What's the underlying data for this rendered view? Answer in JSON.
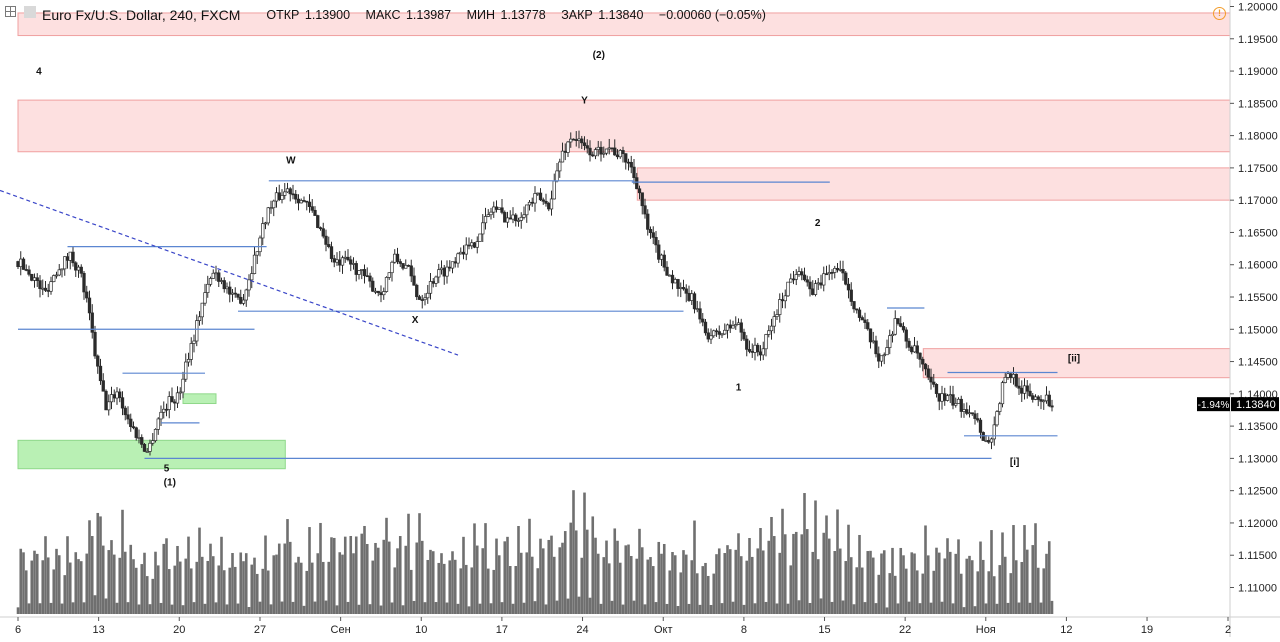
{
  "header": {
    "symbol": "Euro Fx/U.S. Dollar, 240, FXCM",
    "open_label": "ОТКР",
    "open": "1.13900",
    "high_label": "МАКС",
    "high": "1.13987",
    "low_label": "МИН",
    "low": "1.13778",
    "close_label": "ЗАКР",
    "close": "1.13840",
    "change": "−0.00060 (−0.05%)",
    "alert_icon": "!"
  },
  "colors": {
    "candle": "#2b2b2b",
    "volume": "#6f6f6f",
    "level_line": "#5b86d1",
    "zone_red_fill": "#fde0e0",
    "zone_red_border": "#f0a0a0",
    "zone_green_fill": "#b9f0b4",
    "trend_dash": "#3a46c8",
    "price_badge": "#000000"
  },
  "chart_data": {
    "type": "candlestick",
    "title": "Euro Fx/U.S. Dollar, 240, FXCM",
    "y_axis": {
      "range": [
        1.1055,
        1.2005
      ],
      "ticks": [
        "1.20000",
        "1.19500",
        "1.19000",
        "1.18500",
        "1.18000",
        "1.17500",
        "1.17000",
        "1.16500",
        "1.16000",
        "1.15500",
        "1.15000",
        "1.14500",
        "1.14000",
        "1.13500",
        "1.13000",
        "1.12500",
        "1.12000",
        "1.11500",
        "1.11000"
      ]
    },
    "x_axis": {
      "ticks": [
        {
          "label": "6",
          "pos": 0.0
        },
        {
          "label": "13",
          "pos": 7.33
        },
        {
          "label": "20",
          "pos": 14.66
        },
        {
          "label": "27",
          "pos": 22.0
        },
        {
          "label": "Сен",
          "pos": 29.33
        },
        {
          "label": "10",
          "pos": 36.66
        },
        {
          "label": "17",
          "pos": 43.99
        },
        {
          "label": "24",
          "pos": 51.32
        },
        {
          "label": "Окт",
          "pos": 58.66
        },
        {
          "label": "8",
          "pos": 65.99
        },
        {
          "label": "15",
          "pos": 73.32
        },
        {
          "label": "22",
          "pos": 80.65
        },
        {
          "label": "Ноя",
          "pos": 87.98
        },
        {
          "label": "12",
          "pos": 95.31
        },
        {
          "label": "19",
          "pos": 102.64
        },
        {
          "label": "2",
          "pos": 110.0
        }
      ],
      "last_bar_pos": 94.0
    },
    "price_path": [
      [
        0.0,
        1.1605
      ],
      [
        1.2,
        1.1585
      ],
      [
        2.4,
        1.1555
      ],
      [
        3.6,
        1.1595
      ],
      [
        4.8,
        1.1615
      ],
      [
        5.7,
        1.1585
      ],
      [
        6.4,
        1.153
      ],
      [
        7.2,
        1.144
      ],
      [
        8.0,
        1.138
      ],
      [
        9.0,
        1.1405
      ],
      [
        10.0,
        1.136
      ],
      [
        11.0,
        1.133
      ],
      [
        11.8,
        1.131
      ],
      [
        12.8,
        1.1365
      ],
      [
        13.8,
        1.139
      ],
      [
        14.6,
        1.1395
      ],
      [
        15.2,
        1.1445
      ],
      [
        16.0,
        1.149
      ],
      [
        16.8,
        1.1545
      ],
      [
        17.8,
        1.159
      ],
      [
        18.6,
        1.1575
      ],
      [
        19.6,
        1.1545
      ],
      [
        20.5,
        1.155
      ],
      [
        21.5,
        1.161
      ],
      [
        22.6,
        1.168
      ],
      [
        23.6,
        1.1705
      ],
      [
        24.6,
        1.1718
      ],
      [
        25.8,
        1.17
      ],
      [
        26.8,
        1.168
      ],
      [
        27.8,
        1.1645
      ],
      [
        28.8,
        1.16
      ],
      [
        30.0,
        1.1605
      ],
      [
        31.0,
        1.159
      ],
      [
        32.0,
        1.157
      ],
      [
        33.0,
        1.1555
      ],
      [
        34.2,
        1.161
      ],
      [
        35.4,
        1.1595
      ],
      [
        36.4,
        1.1548
      ],
      [
        37.0,
        1.1555
      ],
      [
        38.0,
        1.1585
      ],
      [
        39.2,
        1.1595
      ],
      [
        40.2,
        1.1625
      ],
      [
        41.2,
        1.1625
      ],
      [
        42.2,
        1.166
      ],
      [
        43.2,
        1.169
      ],
      [
        44.2,
        1.1675
      ],
      [
        45.2,
        1.167
      ],
      [
        46.2,
        1.169
      ],
      [
        47.2,
        1.1705
      ],
      [
        48.2,
        1.169
      ],
      [
        49.4,
        1.177
      ],
      [
        50.4,
        1.18
      ],
      [
        51.5,
        1.178
      ],
      [
        52.5,
        1.1772
      ],
      [
        53.5,
        1.1785
      ],
      [
        54.5,
        1.1772
      ],
      [
        55.5,
        1.176
      ],
      [
        56.4,
        1.172
      ],
      [
        57.2,
        1.1655
      ],
      [
        58.4,
        1.161
      ],
      [
        59.4,
        1.158
      ],
      [
        60.4,
        1.1555
      ],
      [
        61.4,
        1.1545
      ],
      [
        62.4,
        1.1495
      ],
      [
        63.4,
        1.149
      ],
      [
        64.4,
        1.15
      ],
      [
        65.4,
        1.151
      ],
      [
        66.4,
        1.147
      ],
      [
        67.6,
        1.1465
      ],
      [
        68.8,
        1.152
      ],
      [
        70.0,
        1.157
      ],
      [
        71.0,
        1.1598
      ],
      [
        72.0,
        1.1555
      ],
      [
        73.2,
        1.158
      ],
      [
        74.2,
        1.1595
      ],
      [
        75.2,
        1.1578
      ],
      [
        76.2,
        1.153
      ],
      [
        77.2,
        1.1495
      ],
      [
        78.2,
        1.1455
      ],
      [
        79.0,
        1.147
      ],
      [
        79.8,
        1.152
      ],
      [
        80.8,
        1.148
      ],
      [
        81.8,
        1.146
      ],
      [
        82.8,
        1.1418
      ],
      [
        83.8,
        1.1395
      ],
      [
        84.8,
        1.139
      ],
      [
        85.8,
        1.138
      ],
      [
        86.8,
        1.1375
      ],
      [
        87.6,
        1.134
      ],
      [
        88.2,
        1.132
      ],
      [
        88.9,
        1.136
      ],
      [
        89.6,
        1.142
      ],
      [
        90.4,
        1.143
      ],
      [
        91.2,
        1.1408
      ],
      [
        92.2,
        1.1395
      ],
      [
        93.2,
        1.1395
      ],
      [
        94.0,
        1.1384
      ]
    ],
    "volume_profile": [
      [
        0.0,
        0.65
      ],
      [
        6.2,
        0.65
      ],
      [
        7.0,
        1.05
      ],
      [
        8.0,
        0.9
      ],
      [
        12.0,
        0.55
      ],
      [
        13.0,
        0.7
      ],
      [
        20.0,
        0.62
      ],
      [
        26.0,
        0.75
      ],
      [
        34.0,
        0.8
      ],
      [
        40.0,
        0.62
      ],
      [
        48.0,
        0.8
      ],
      [
        52.0,
        1.0
      ],
      [
        56.0,
        0.72
      ],
      [
        64.0,
        0.65
      ],
      [
        70.0,
        0.78
      ],
      [
        72.0,
        0.92
      ],
      [
        78.0,
        0.62
      ],
      [
        82.0,
        0.7
      ],
      [
        88.0,
        0.62
      ],
      [
        94.0,
        0.72
      ]
    ],
    "zones": [
      {
        "kind": "resistance",
        "y_from": 1.1955,
        "y_to": 1.199,
        "x_from": 0,
        "x_to": 115
      },
      {
        "kind": "resistance",
        "y_from": 1.1775,
        "y_to": 1.1855,
        "x_from": 0,
        "x_to": 115
      },
      {
        "kind": "resistance",
        "y_from": 1.17,
        "y_to": 1.175,
        "x_from": 56.3,
        "x_to": 115
      },
      {
        "kind": "resistance",
        "y_from": 1.1425,
        "y_to": 1.147,
        "x_from": 82.3,
        "x_to": 115
      },
      {
        "kind": "support",
        "y_from": 1.1284,
        "y_to": 1.1328,
        "x_from": 0,
        "x_to": 24.3
      },
      {
        "kind": "support",
        "y_from": 1.1385,
        "y_to": 1.14,
        "x_from": 15.0,
        "x_to": 18.0
      }
    ],
    "levels": [
      {
        "y": 1.13,
        "x_from": 11.5,
        "x_to": 88.5
      },
      {
        "y": 1.15,
        "x_from": 0,
        "x_to": 21.5
      },
      {
        "y": 1.1628,
        "x_from": 4.5,
        "x_to": 22.6
      },
      {
        "y": 1.1528,
        "x_from": 20.0,
        "x_to": 60.5
      },
      {
        "y": 1.173,
        "x_from": 22.8,
        "x_to": 56.0
      },
      {
        "y": 1.1728,
        "x_from": 55.8,
        "x_to": 73.8
      },
      {
        "y": 1.1432,
        "x_from": 9.5,
        "x_to": 17.0
      },
      {
        "y": 1.1533,
        "x_from": 79.0,
        "x_to": 82.4
      },
      {
        "y": 1.1433,
        "x_from": 84.5,
        "x_to": 94.5
      },
      {
        "y": 1.1335,
        "x_from": 86.0,
        "x_to": 94.5
      },
      {
        "y": 1.1355,
        "x_from": 13.0,
        "x_to": 16.5
      }
    ],
    "trendline": {
      "from": [
        0.0,
        1.1715
      ],
      "to": [
        40.0,
        1.146
      ]
    },
    "wave_labels": [
      {
        "text": "4",
        "x": 1.9,
        "y": 1.1895
      },
      {
        "text": "W",
        "x": 24.8,
        "y": 1.1757
      },
      {
        "text": "(2)",
        "x": 52.8,
        "y": 1.192
      },
      {
        "text": "Y",
        "x": 51.5,
        "y": 1.185
      },
      {
        "text": "X",
        "x": 36.1,
        "y": 1.151
      },
      {
        "text": "2",
        "x": 72.7,
        "y": 1.166
      },
      {
        "text": "1",
        "x": 65.5,
        "y": 1.1405
      },
      {
        "text": "[ii]",
        "x": 96.0,
        "y": 1.145
      },
      {
        "text": "[i]",
        "x": 90.6,
        "y": 1.129
      },
      {
        "text": "5",
        "x": 13.5,
        "y": 1.128
      },
      {
        "text": "(1)",
        "x": 13.8,
        "y": 1.1258
      }
    ],
    "last_price": {
      "value": "1.13840",
      "change_pct": "-1.94%"
    }
  }
}
